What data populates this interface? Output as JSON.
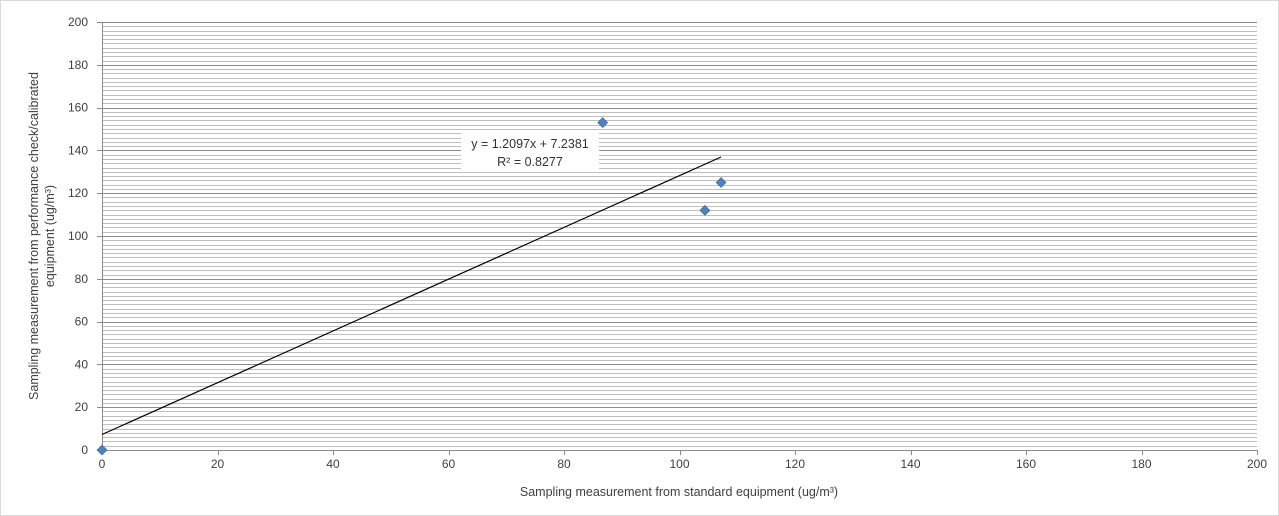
{
  "chart_data": {
    "type": "scatter",
    "xlabel": "Sampling measurement from standard equipment  (ug/m³)",
    "ylabel_line1": "Sampling measurement from performance check/calibrated",
    "ylabel_line2": "equipment (ug/m³)",
    "xlim": [
      0,
      200
    ],
    "ylim": [
      0,
      200
    ],
    "x_ticks": [
      "0",
      "20",
      "40",
      "60",
      "80",
      "100",
      "120",
      "140",
      "160",
      "180",
      "200"
    ],
    "y_ticks": [
      "0",
      "20",
      "40",
      "60",
      "80",
      "100",
      "120",
      "140",
      "160",
      "180",
      "200"
    ],
    "minor_gridline_step": 2,
    "major_gridline_step": 20,
    "series": [
      {
        "x": [
          0,
          86.7,
          104.4,
          107.2
        ],
        "y": [
          0,
          153,
          112,
          125
        ],
        "marker": "diamond",
        "color": "#4f81bd"
      }
    ],
    "trendline": {
      "type": "linear",
      "slope": 1.2097,
      "intercept": 7.2381,
      "x_range": [
        0,
        107.2
      ],
      "color": "#000000",
      "equation_label": "y = 1.2097x + 7.2381",
      "r2_label": "R² = 0.8277"
    }
  }
}
